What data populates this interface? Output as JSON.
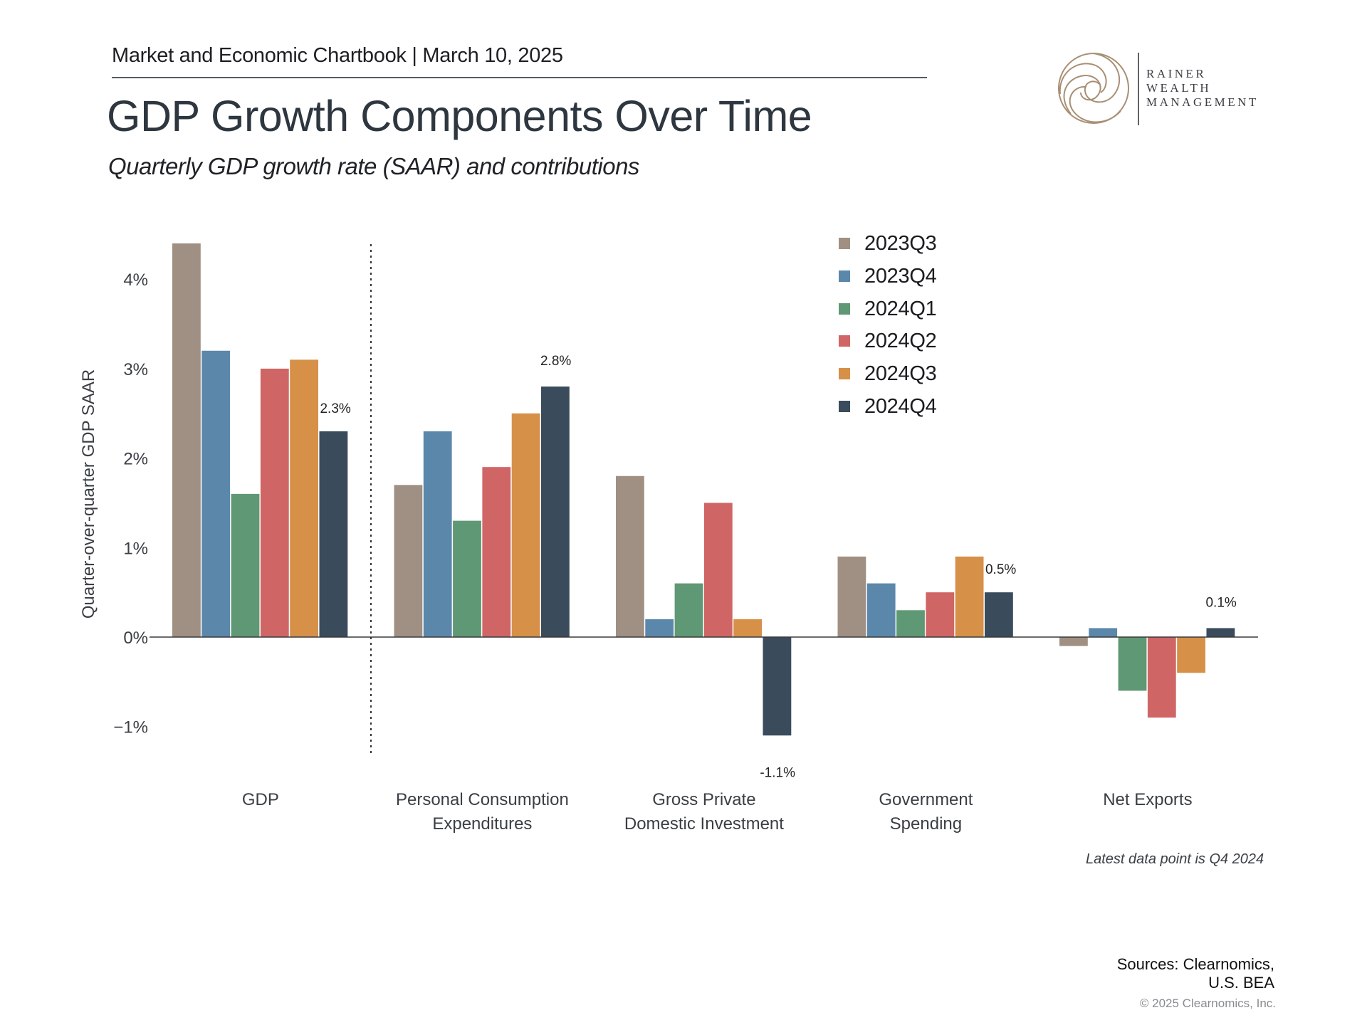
{
  "header": {
    "chartbook": "Market and Economic Chartbook | March 10, 2025",
    "title": "GDP Growth Components Over Time",
    "subtitle": "Quarterly GDP growth rate (SAAR) and contributions"
  },
  "logo": {
    "icon": "spiral-logo-icon",
    "lines": [
      "RAINER",
      "WEALTH",
      "MANAGEMENT"
    ],
    "color": "#a88f74"
  },
  "chart_data": {
    "type": "bar",
    "title": "GDP Growth Components Over Time",
    "subtitle": "Quarterly GDP growth rate (SAAR) and contributions",
    "xlabel": "",
    "ylabel": "Quarter-over-quarter GDP SAAR",
    "ylim": [
      -1.2,
      4.4
    ],
    "yticks": [
      -1,
      0,
      1,
      2,
      3,
      4
    ],
    "ytick_labels": [
      "−1%",
      "0%",
      "1%",
      "2%",
      "3%",
      "4%"
    ],
    "grid": false,
    "legend_position": "top-right",
    "categories": [
      "GDP",
      "Personal Consumption\nExpenditures",
      "Gross Private\nDomestic Investment",
      "Government\nSpending",
      "Net Exports"
    ],
    "series": [
      {
        "name": "2023Q3",
        "color": "#a09083",
        "values": [
          4.4,
          1.7,
          1.8,
          0.9,
          -0.1
        ]
      },
      {
        "name": "2023Q4",
        "color": "#5b87ab",
        "values": [
          3.2,
          2.3,
          0.2,
          0.6,
          0.1
        ]
      },
      {
        "name": "2024Q1",
        "color": "#5f9874",
        "values": [
          1.6,
          1.3,
          0.6,
          0.3,
          -0.6
        ]
      },
      {
        "name": "2024Q2",
        "color": "#d06565",
        "values": [
          3.0,
          1.9,
          1.5,
          0.5,
          -0.9
        ]
      },
      {
        "name": "2024Q3",
        "color": "#d69048",
        "values": [
          3.1,
          2.5,
          0.2,
          0.9,
          -0.4
        ]
      },
      {
        "name": "2024Q4",
        "color": "#3a4b5c",
        "values": [
          2.3,
          2.8,
          -1.1,
          0.5,
          0.1
        ]
      }
    ],
    "data_labels": [
      {
        "series": "2024Q4",
        "category_index": 0,
        "text": "2.3%"
      },
      {
        "series": "2024Q4",
        "category_index": 1,
        "text": "2.8%"
      },
      {
        "series": "2024Q4",
        "category_index": 2,
        "text": "-1.1%"
      },
      {
        "series": "2024Q4",
        "category_index": 3,
        "text": "0.5%"
      },
      {
        "series": "2024Q4",
        "category_index": 4,
        "text": "0.1%"
      }
    ],
    "separator_after_category": 0,
    "annotations": [
      "Latest data point is Q4 2024"
    ]
  },
  "footer": {
    "note": "Latest data point is Q4 2024",
    "sources_line1": "Sources: Clearnomics,",
    "sources_line2": "U.S. BEA",
    "copyright": "© 2025 Clearnomics, Inc."
  }
}
